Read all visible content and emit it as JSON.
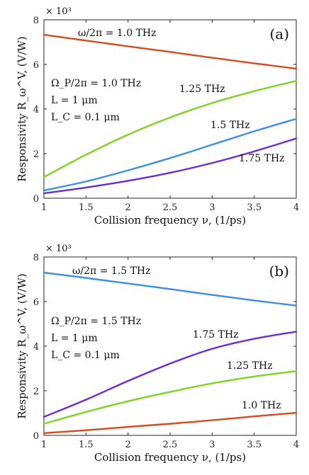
{
  "chart_data": [
    {
      "type": "line",
      "panel_label": "(a)",
      "multiplier": "× 10³",
      "xlabel": "Collision frequency ν, (1/ps)",
      "ylabel": "Responsivity R_ω^V, (V/W)",
      "xlim": [
        1,
        4
      ],
      "ylim": [
        0,
        8000
      ],
      "xticks": [
        1,
        1.5,
        2,
        2.5,
        3,
        3.5,
        4
      ],
      "xtick_labels": [
        "1",
        "1.5",
        "2",
        "2.5",
        "3",
        "3.5",
        "4"
      ],
      "yticks": [
        0,
        2000,
        4000,
        6000,
        8000
      ],
      "ytick_labels": [
        "0",
        "2",
        "4",
        "6",
        "8"
      ],
      "grid": false,
      "params": [
        "Ω_P/2π = 1.0 THz",
        "L = 1 μm",
        "L_C = 0.1 μm"
      ],
      "x": [
        1,
        1.5,
        2,
        2.5,
        3,
        3.5,
        4
      ],
      "series": [
        {
          "name": "ω/2π = 1.0 THz",
          "color": "#d94a1e",
          "values": [
            7330,
            7070,
            6810,
            6560,
            6300,
            6050,
            5810
          ]
        },
        {
          "name": "1.25 THz",
          "color": "#7ed321",
          "values": [
            950,
            1950,
            2850,
            3620,
            4270,
            4800,
            5260
          ]
        },
        {
          "name": "1.5 THz",
          "color": "#3a8ee6",
          "values": [
            350,
            750,
            1250,
            1800,
            2400,
            3000,
            3560
          ]
        },
        {
          "name": "1.75 THz",
          "color": "#6a2bd9",
          "values": [
            220,
            480,
            780,
            1140,
            1580,
            2100,
            2680
          ]
        }
      ]
    },
    {
      "type": "line",
      "panel_label": "(b)",
      "multiplier": "× 10³",
      "xlabel": "Collision frequency ν, (1/ps)",
      "ylabel": "Responsivity R_ω^V, (V/W)",
      "xlim": [
        1,
        4
      ],
      "ylim": [
        0,
        8000
      ],
      "xticks": [
        1,
        1.5,
        2,
        2.5,
        3,
        3.5,
        4
      ],
      "xtick_labels": [
        "1",
        "1.5",
        "2",
        "2.5",
        "3",
        "3.5",
        "4"
      ],
      "yticks": [
        0,
        2000,
        4000,
        6000,
        8000
      ],
      "ytick_labels": [
        "0",
        "2",
        "4",
        "6",
        "8"
      ],
      "grid": false,
      "params": [
        "Ω_P/2π = 1.5 THz",
        "L = 1 μm",
        "L_C = 0.1 μm"
      ],
      "x": [
        1,
        1.5,
        2,
        2.5,
        3,
        3.5,
        4
      ],
      "series": [
        {
          "name": "ω/2π = 1.5 THz",
          "color": "#3a8ee6",
          "values": [
            7300,
            7060,
            6810,
            6560,
            6300,
            6050,
            5820
          ]
        },
        {
          "name": "1.75 THz",
          "color": "#6a2bd9",
          "values": [
            830,
            1600,
            2440,
            3220,
            3880,
            4330,
            4650
          ]
        },
        {
          "name": "1.25 THz",
          "color": "#7ed321",
          "values": [
            520,
            1050,
            1530,
            1950,
            2330,
            2640,
            2880
          ]
        },
        {
          "name": "1.0 THz",
          "color": "#d94a1e",
          "values": [
            100,
            230,
            380,
            520,
            680,
            850,
            1010
          ]
        }
      ]
    }
  ]
}
